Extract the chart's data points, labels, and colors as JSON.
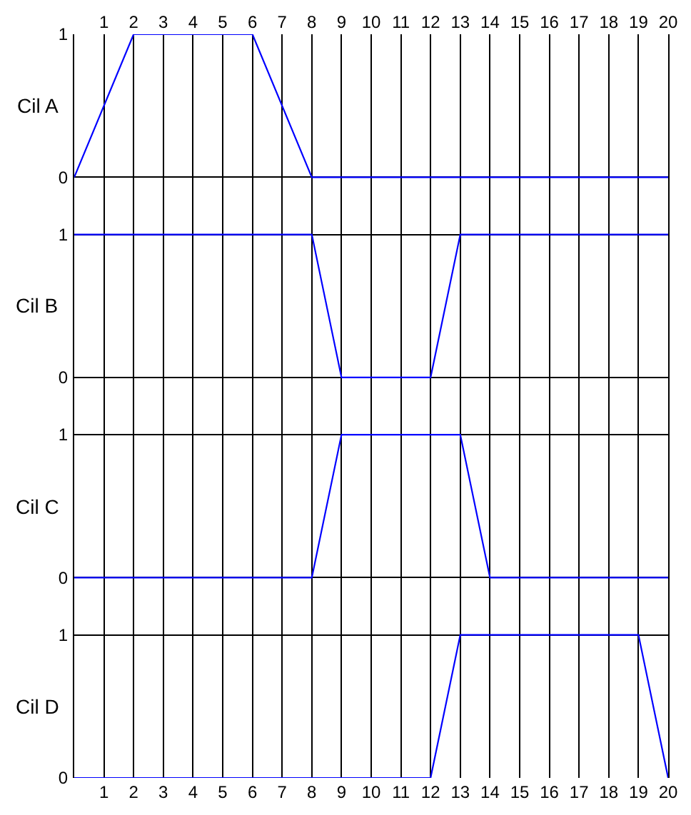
{
  "chart_data": [
    {
      "type": "line",
      "ylabel": "Cil A",
      "x": [
        0,
        2,
        6,
        8,
        20
      ],
      "values": [
        0,
        1,
        1,
        0,
        0
      ],
      "color": "#0000ff",
      "line_style": "solid",
      "xlim": [
        0,
        20
      ],
      "xticks": [
        1,
        2,
        3,
        4,
        5,
        6,
        7,
        8,
        9,
        10,
        11,
        12,
        13,
        14,
        15,
        16,
        17,
        18,
        19,
        20
      ],
      "ylim": [
        -0.2,
        1
      ],
      "yticks": [
        0,
        1
      ],
      "grid": true
    },
    {
      "type": "line",
      "ylabel": "Cil B",
      "x": [
        0,
        8,
        9,
        12,
        13,
        20
      ],
      "values": [
        1,
        1,
        0,
        0,
        1,
        1
      ],
      "color": "#0000ff",
      "line_style": "solid",
      "xlim": [
        0,
        20
      ],
      "xticks": [
        1,
        2,
        3,
        4,
        5,
        6,
        7,
        8,
        9,
        10,
        11,
        12,
        13,
        14,
        15,
        16,
        17,
        18,
        19,
        20
      ],
      "ylim": [
        -0.2,
        1.2
      ],
      "yticks": [
        0,
        1
      ],
      "grid": true,
      "tick_labels": "y"
    },
    {
      "type": "line",
      "ylabel": "Cil C",
      "x": [
        0,
        8,
        9,
        13,
        14,
        20
      ],
      "values": [
        0,
        0,
        1,
        1,
        0,
        0
      ],
      "color": "#0000ff",
      "line_style": "solid",
      "xlim": [
        0,
        20
      ],
      "xticks": [
        1,
        2,
        3,
        4,
        5,
        6,
        7,
        8,
        9,
        10,
        11,
        12,
        13,
        14,
        15,
        16,
        17,
        18,
        19,
        20
      ],
      "ylim": [
        -0.2,
        1.2
      ],
      "yticks": [
        0,
        1
      ],
      "grid": true,
      "tick_labels": "y"
    },
    {
      "type": "line",
      "ylabel": "Cil D",
      "x": [
        0,
        12,
        13,
        19,
        20
      ],
      "values": [
        0,
        0,
        1,
        1,
        0
      ],
      "color": "#0000ff",
      "line_style": "solid",
      "xlim": [
        0,
        20
      ],
      "xticks": [
        1,
        2,
        3,
        4,
        5,
        6,
        7,
        8,
        9,
        10,
        11,
        12,
        13,
        14,
        15,
        16,
        17,
        18,
        19,
        20
      ],
      "ylim": [
        0,
        1.2
      ],
      "yticks": [
        0,
        1
      ],
      "grid": true
    }
  ]
}
